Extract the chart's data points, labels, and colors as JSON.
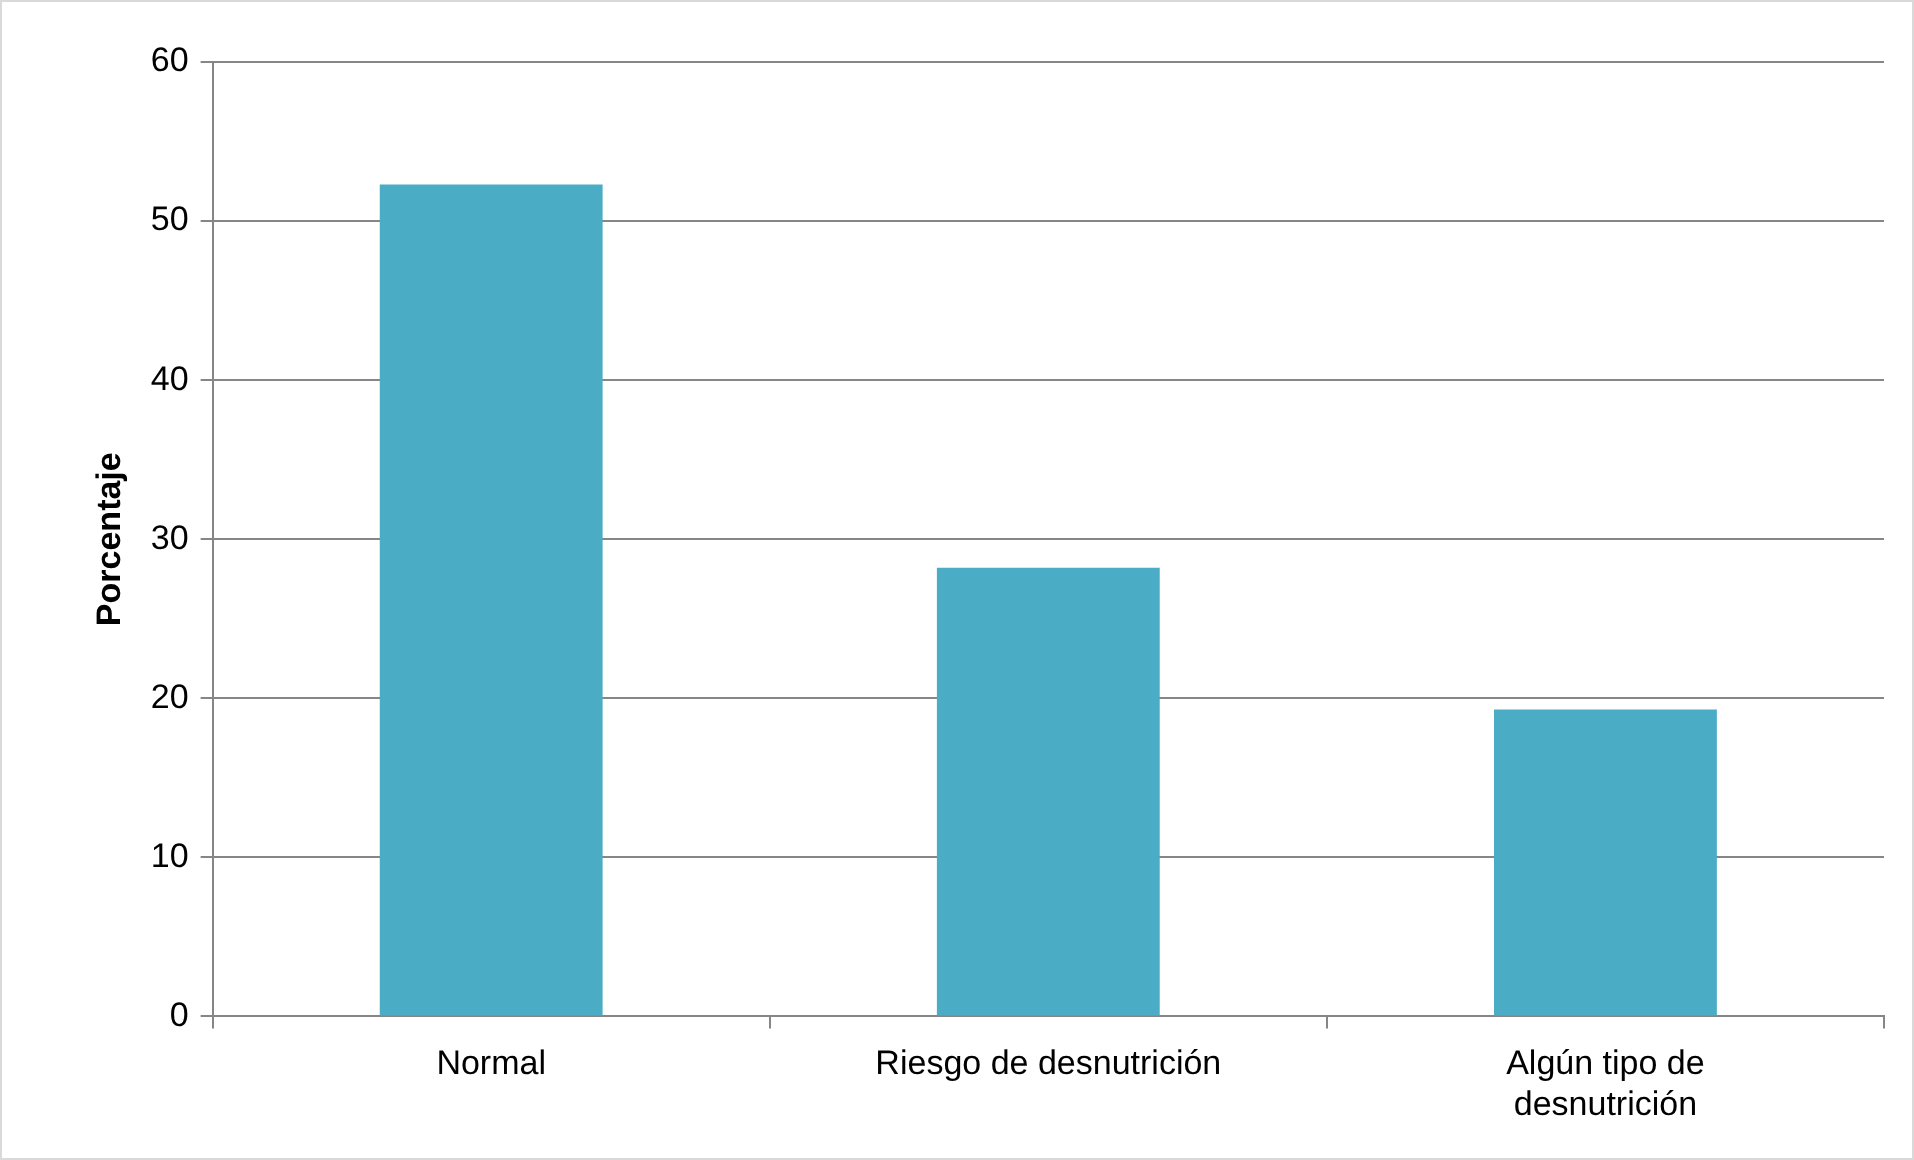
{
  "chart_data": {
    "type": "bar",
    "ylabel": "Porcentaje",
    "categories": [
      "Normal",
      "Riesgo de desnutrición",
      "Algún tipo de desnutrición"
    ],
    "values": [
      52.3,
      28.2,
      19.3
    ],
    "color": "#4bacc6",
    "ylim": [
      0,
      60
    ],
    "yticks": [
      0,
      10,
      20,
      30,
      40,
      50,
      60
    ],
    "grid": "y"
  }
}
